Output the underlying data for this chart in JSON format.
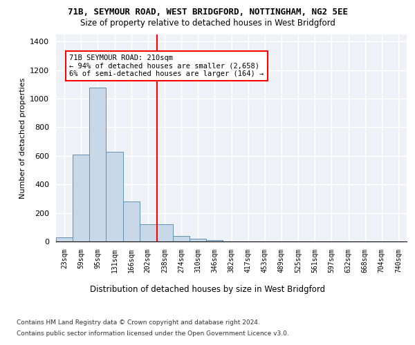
{
  "title": "71B, SEYMOUR ROAD, WEST BRIDGFORD, NOTTINGHAM, NG2 5EE",
  "subtitle": "Size of property relative to detached houses in West Bridgford",
  "xlabel": "Distribution of detached houses by size in West Bridgford",
  "ylabel": "Number of detached properties",
  "bar_labels": [
    "23sqm",
    "59sqm",
    "95sqm",
    "131sqm",
    "166sqm",
    "202sqm",
    "238sqm",
    "274sqm",
    "310sqm",
    "346sqm",
    "382sqm",
    "417sqm",
    "453sqm",
    "489sqm",
    "525sqm",
    "561sqm",
    "597sqm",
    "632sqm",
    "668sqm",
    "704sqm",
    "740sqm"
  ],
  "bar_values": [
    28,
    610,
    1080,
    630,
    280,
    120,
    120,
    40,
    20,
    12,
    0,
    0,
    0,
    0,
    0,
    0,
    0,
    0,
    0,
    0,
    0
  ],
  "bar_color": "#c8d8e8",
  "bar_edge_color": "#6090b0",
  "vline_x": 5.55,
  "vline_color": "red",
  "annotation_text": "71B SEYMOUR ROAD: 210sqm\n← 94% of detached houses are smaller (2,658)\n6% of semi-detached houses are larger (164) →",
  "annotation_box_color": "white",
  "annotation_box_edge_color": "red",
  "ylim": [
    0,
    1450
  ],
  "yticks": [
    0,
    200,
    400,
    600,
    800,
    1000,
    1200,
    1400
  ],
  "background_color": "#eef2f7",
  "grid_color": "white",
  "footer_line1": "Contains HM Land Registry data © Crown copyright and database right 2024.",
  "footer_line2": "Contains public sector information licensed under the Open Government Licence v3.0."
}
